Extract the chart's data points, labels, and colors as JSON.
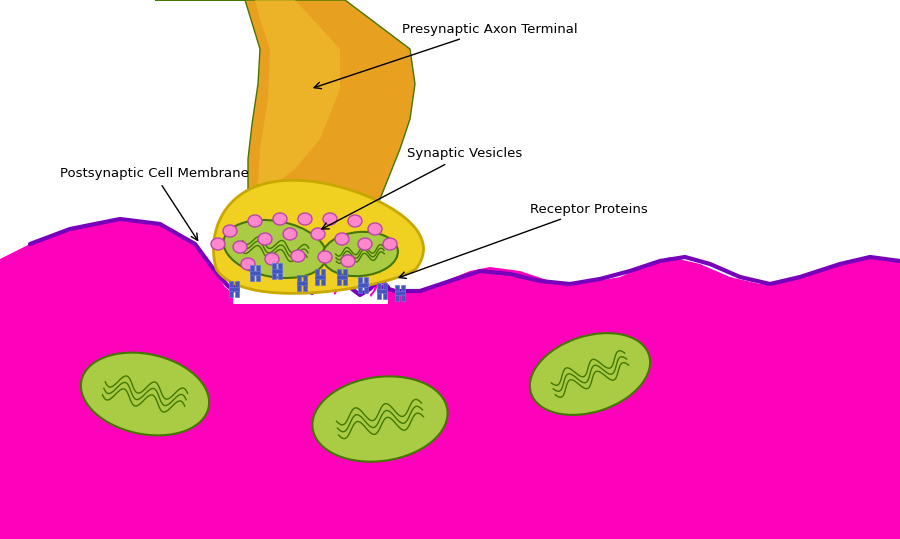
{
  "background": "white",
  "labels": {
    "presynaptic": "Presynaptic Axon Terminal",
    "postsynaptic": "Postsynaptic Cell Membrane",
    "synaptic_vesicles": "Synaptic Vesicles",
    "receptor_proteins": "Receptor Proteins"
  },
  "colors": {
    "axon_orange": "#E8A020",
    "axon_yellow": "#F0C030",
    "terminal_yellow": "#F0D020",
    "terminal_yellow_edge": "#C8A800",
    "cell_magenta": "#FF00BB",
    "cell_magenta_dark": "#DD0099",
    "purple_membrane": "#7700BB",
    "vesicle_pink": "#FF88CC",
    "vesicle_outline": "#BB44AA",
    "mito_green": "#AACC44",
    "mito_dark": "#447700",
    "mito_inner": "#88AA22",
    "white": "#FFFFFF",
    "black": "#000000",
    "receptor_blue": "#4455BB",
    "receptor_blue2": "#6677DD"
  },
  "fig_width": 9.0,
  "fig_height": 5.39,
  "dpi": 100
}
